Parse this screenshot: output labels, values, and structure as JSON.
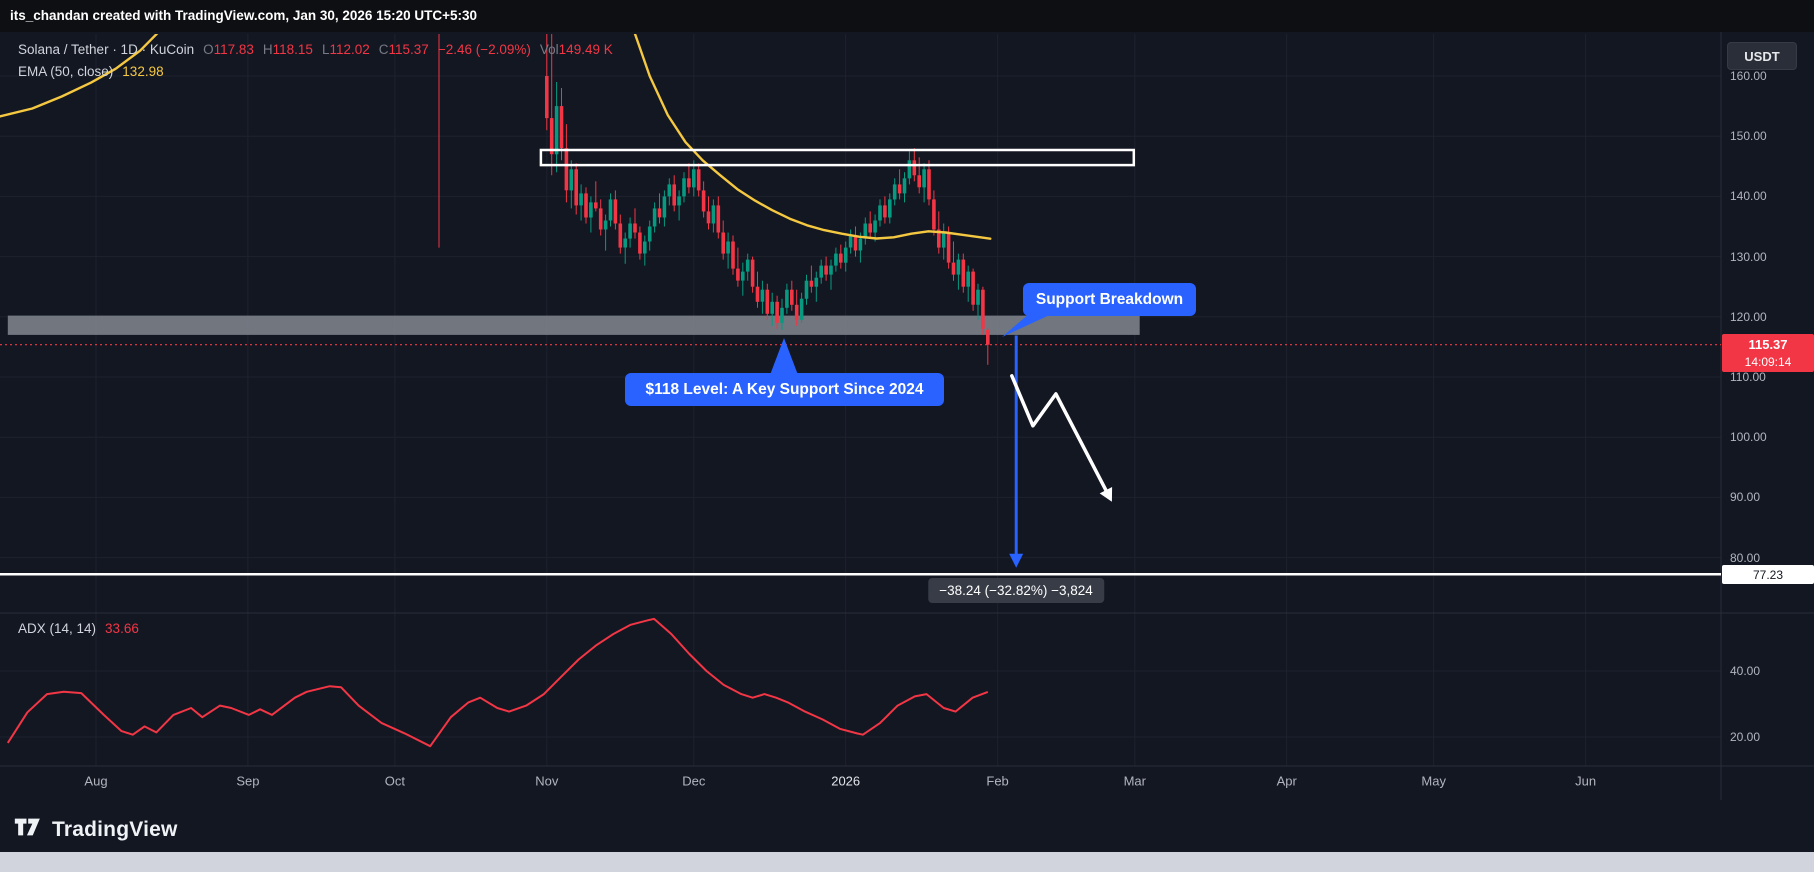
{
  "attribution": "its_chandan created with TradingView.com, Jan 30, 2026 15:20 UTC+5:30",
  "toolbar": {
    "currency": "USDT"
  },
  "legend": {
    "symbol": "Solana / Tether · 1D · KuCoin",
    "o_label": "O",
    "o": "117.83",
    "h_label": "H",
    "h": "118.15",
    "l_label": "L",
    "l": "112.02",
    "c_label": "C",
    "c": "115.37",
    "change": "−2.46 (−2.09%)",
    "vol_label": "Vol",
    "vol": "149.49 K",
    "ema_name": "EMA (50, close)",
    "ema_value": "132.98"
  },
  "indicator": {
    "name": "ADX (14, 14)",
    "value": "33.66"
  },
  "price_label": {
    "price": "115.37",
    "countdown": "14:09:14"
  },
  "level_label": "77.23",
  "annotations": {
    "support_breakdown": "Support Breakdown",
    "key_support": "$118 Level: A Key Support Since 2024",
    "measure": "−38.24 (−32.82%) −3,824"
  },
  "footer": {
    "brand": "TradingView"
  },
  "colors": {
    "up": "#089981",
    "down": "#f23645",
    "ema": "#f5c842",
    "adx": "#f23645",
    "accent_blue": "#2962ff",
    "zone_gray": "#83878f",
    "grid": "#1e222d",
    "border": "#2a2e39",
    "axis_text": "#b2b5be",
    "dim_text": "#787b86",
    "box_white": "#ffffff"
  },
  "chart_data": {
    "type": "candlestick",
    "symbol": "Solana / Tether",
    "interval": "1D",
    "exchange": "KuCoin",
    "last_ohlc": {
      "open": 117.83,
      "high": 118.15,
      "low": 112.02,
      "close": 115.37,
      "change": -2.46,
      "change_pct": -2.09,
      "volume": "149.49 K"
    },
    "price_axis": {
      "ticks": [
        {
          "label": "160.00",
          "value": 160
        },
        {
          "label": "150.00",
          "value": 150
        },
        {
          "label": "140.00",
          "value": 140
        },
        {
          "label": "130.00",
          "value": 130
        },
        {
          "label": "120.00",
          "value": 120
        },
        {
          "label": "110.00",
          "value": 110
        },
        {
          "label": "100.00",
          "value": 100
        },
        {
          "label": "90.00",
          "value": 90
        },
        {
          "label": "80.00",
          "value": 80
        }
      ],
      "current_price": 115.37,
      "support_ray": 77.23
    },
    "time_axis": [
      {
        "label": "Aug",
        "day": -70
      },
      {
        "label": "Sep",
        "day": -39
      },
      {
        "label": "Oct",
        "day": -9
      },
      {
        "label": "Nov",
        "day": 22
      },
      {
        "label": "Dec",
        "day": 52
      },
      {
        "label": "2026",
        "day": 83,
        "year": true
      },
      {
        "label": "Feb",
        "day": 114
      },
      {
        "label": "Mar",
        "day": 142
      },
      {
        "label": "Apr",
        "day": 173
      },
      {
        "label": "May",
        "day": 203
      },
      {
        "label": "Jun",
        "day": 234
      }
    ],
    "candles": [
      [
        0,
        175,
        178,
        131.5,
        171
      ],
      [
        22,
        160,
        169,
        151,
        153
      ],
      [
        23,
        153,
        167,
        143.5,
        147
      ],
      [
        24,
        147,
        159,
        144,
        155
      ],
      [
        25,
        155,
        158,
        146,
        148
      ],
      [
        26,
        148,
        152,
        139,
        141
      ],
      [
        27,
        141,
        146,
        138,
        144.5
      ],
      [
        28,
        144.5,
        145.5,
        137,
        138.5
      ],
      [
        29,
        138.5,
        142,
        136,
        140.5
      ],
      [
        30,
        140.5,
        141.5,
        135.5,
        136.5
      ],
      [
        31,
        136.5,
        140,
        134,
        139
      ],
      [
        32,
        139,
        142.5,
        137.5,
        138
      ],
      [
        33,
        138,
        139.5,
        133.5,
        134.5
      ],
      [
        34,
        134.5,
        137,
        131,
        136
      ],
      [
        35,
        136,
        140.5,
        135,
        139.5
      ],
      [
        36,
        139.5,
        141,
        134.5,
        135.5
      ],
      [
        37,
        135.5,
        137,
        130.5,
        131.5
      ],
      [
        38,
        131.5,
        134,
        128.8,
        133
      ],
      [
        39,
        133,
        136.5,
        131.5,
        135.5
      ],
      [
        40,
        135.5,
        138,
        133,
        134
      ],
      [
        41,
        134,
        135,
        129.5,
        130.5
      ],
      [
        42,
        130.5,
        133.5,
        128.5,
        132.5
      ],
      [
        43,
        132.5,
        136,
        131,
        135
      ],
      [
        44,
        135,
        139,
        134,
        138
      ],
      [
        45,
        138,
        140.5,
        135.5,
        136.5
      ],
      [
        46,
        136.5,
        141,
        135,
        140
      ],
      [
        47,
        140,
        143,
        138.5,
        142
      ],
      [
        48,
        142,
        143.5,
        137.5,
        138.5
      ],
      [
        49,
        138.5,
        141,
        136,
        140
      ],
      [
        50,
        140,
        144,
        139,
        143
      ],
      [
        51,
        143,
        145.5,
        140.5,
        141.5
      ],
      [
        52,
        141.5,
        146,
        140,
        144.5
      ],
      [
        53,
        144.5,
        145.5,
        140,
        141
      ],
      [
        54,
        141,
        142.5,
        136.5,
        137.5
      ],
      [
        55,
        137.5,
        140,
        134.5,
        135.5
      ],
      [
        56,
        135.5,
        139.5,
        134,
        138.5
      ],
      [
        57,
        138.5,
        140,
        133,
        134
      ],
      [
        58,
        134,
        136,
        129.5,
        130.5
      ],
      [
        59,
        130.5,
        134,
        128,
        132.5
      ],
      [
        60,
        132.5,
        133.5,
        127,
        128
      ],
      [
        61,
        128,
        131.5,
        125,
        126
      ],
      [
        62,
        126,
        129,
        123.5,
        127.5
      ],
      [
        63,
        127.5,
        130.5,
        126,
        129.5
      ],
      [
        64,
        129.5,
        130,
        124,
        125
      ],
      [
        65,
        125,
        127.5,
        121.5,
        122.5
      ],
      [
        66,
        122.5,
        126,
        120.5,
        124.5
      ],
      [
        67,
        124.5,
        125.5,
        119.5,
        120.5
      ],
      [
        68,
        120.5,
        124,
        118.5,
        122.5
      ],
      [
        69,
        122.5,
        123.5,
        118,
        119
      ],
      [
        70,
        119,
        123,
        117.8,
        121.5
      ],
      [
        71,
        121.5,
        125.5,
        120.5,
        124.5
      ],
      [
        72,
        124.5,
        126,
        121,
        122
      ],
      [
        73,
        122,
        124.5,
        118.5,
        119.5
      ],
      [
        74,
        119.5,
        124,
        119,
        123
      ],
      [
        75,
        123,
        127,
        122,
        126
      ],
      [
        76,
        126,
        128.5,
        124,
        125
      ],
      [
        77,
        125,
        127.5,
        122.5,
        126.5
      ],
      [
        78,
        126.5,
        129.5,
        125.5,
        128.5
      ],
      [
        79,
        128.5,
        130,
        126,
        127
      ],
      [
        80,
        127,
        129.5,
        124.5,
        128.5
      ],
      [
        81,
        128.5,
        131.5,
        127.5,
        130.5
      ],
      [
        82,
        130.5,
        132,
        128,
        129
      ],
      [
        83,
        129,
        132.5,
        127.5,
        131.5
      ],
      [
        84,
        131.5,
        134.5,
        130.5,
        133.5
      ],
      [
        85,
        133.5,
        135,
        130,
        131
      ],
      [
        86,
        131,
        134,
        129,
        133
      ],
      [
        87,
        133,
        136.5,
        132,
        135.5
      ],
      [
        88,
        135.5,
        137.5,
        133,
        134
      ],
      [
        89,
        134,
        137,
        132.5,
        136
      ],
      [
        90,
        136,
        139.5,
        135,
        138.5
      ],
      [
        91,
        138.5,
        140,
        135.5,
        136.5
      ],
      [
        92,
        136.5,
        140.5,
        135.5,
        139.5
      ],
      [
        93,
        139.5,
        143,
        138.5,
        142
      ],
      [
        94,
        142,
        144.5,
        139.5,
        140.5
      ],
      [
        95,
        140.5,
        144,
        139,
        143
      ],
      [
        96,
        143,
        147.5,
        142,
        146
      ],
      [
        97,
        146,
        148,
        142.5,
        143.5
      ],
      [
        98,
        143.5,
        146.5,
        140.5,
        141.5
      ],
      [
        99,
        141.5,
        145.5,
        139,
        144.5
      ],
      [
        100,
        144.5,
        146,
        138.5,
        139.5
      ],
      [
        101,
        139.5,
        141,
        133.5,
        134.5
      ],
      [
        102,
        134.5,
        137.5,
        130.5,
        131.5
      ],
      [
        103,
        131.5,
        135.5,
        129.5,
        134
      ],
      [
        104,
        134,
        135,
        128,
        129
      ],
      [
        105,
        129,
        132.5,
        126,
        127
      ],
      [
        106,
        127,
        130.5,
        124.5,
        129.5
      ],
      [
        107,
        129.5,
        130.5,
        124,
        125
      ],
      [
        108,
        125,
        128.5,
        122.5,
        127.5
      ],
      [
        109,
        127.5,
        128,
        121,
        122
      ],
      [
        110,
        122,
        125.5,
        119.5,
        124.5
      ],
      [
        111,
        124.5,
        125,
        117,
        118
      ],
      [
        112,
        117.83,
        118.15,
        112.02,
        115.37
      ]
    ],
    "ema50": {
      "period": 50,
      "source": "close",
      "last": 132.98,
      "segments": [
        [
          [
            -90,
            153.2
          ],
          [
            -83,
            154.6
          ],
          [
            -77,
            156.6
          ],
          [
            -71,
            158.9
          ],
          [
            -66,
            161.2
          ],
          [
            -61,
            164.2
          ],
          [
            -57,
            167.5
          ]
        ],
        [
          [
            40,
            167
          ],
          [
            43,
            160
          ],
          [
            46.7,
            153.5
          ],
          [
            50.3,
            149
          ],
          [
            53.8,
            146
          ],
          [
            57.4,
            143.5
          ],
          [
            60.9,
            141.2
          ],
          [
            64.5,
            139.3
          ],
          [
            68,
            137.7
          ],
          [
            71.6,
            136.3
          ],
          [
            75.1,
            135.2
          ],
          [
            78.6,
            134.4
          ],
          [
            82.2,
            133.8
          ],
          [
            85.7,
            133.3
          ],
          [
            89.3,
            133
          ],
          [
            92.8,
            133.2
          ],
          [
            96.4,
            133.8
          ],
          [
            99.9,
            134.2
          ],
          [
            103.4,
            134
          ],
          [
            107,
            133.6
          ],
          [
            110.5,
            133.2
          ],
          [
            112.5,
            132.98
          ]
        ]
      ]
    },
    "adx": {
      "length": 14,
      "smoothing": 14,
      "last": 33.66,
      "ticks": [
        {
          "label": "40.00",
          "value": 40
        },
        {
          "label": "20.00",
          "value": 20
        }
      ],
      "points": [
        [
          -88,
          18.2
        ],
        [
          -84,
          27.5
        ],
        [
          -80,
          33
        ],
        [
          -76.6,
          33.7
        ],
        [
          -73,
          33.3
        ],
        [
          -68.4,
          26.7
        ],
        [
          -64.8,
          21.8
        ],
        [
          -62.5,
          20.7
        ],
        [
          -60.1,
          23.2
        ],
        [
          -57.7,
          21.4
        ],
        [
          -54.2,
          26.7
        ],
        [
          -50.6,
          28.8
        ],
        [
          -48.3,
          26
        ],
        [
          -44.7,
          29.5
        ],
        [
          -42.4,
          28.8
        ],
        [
          -38.8,
          26.7
        ],
        [
          -36.5,
          28.4
        ],
        [
          -34.1,
          26.7
        ],
        [
          -29.4,
          31.9
        ],
        [
          -27,
          33.7
        ],
        [
          -22.3,
          35.4
        ],
        [
          -20,
          35.1
        ],
        [
          -16.4,
          29.5
        ],
        [
          -11.7,
          24.2
        ],
        [
          -7,
          21.1
        ],
        [
          -1.8,
          17.2
        ],
        [
          2.4,
          26
        ],
        [
          6,
          30.5
        ],
        [
          8.4,
          31.9
        ],
        [
          11.9,
          28.8
        ],
        [
          14.3,
          27.7
        ],
        [
          17.8,
          29.5
        ],
        [
          21.4,
          33
        ],
        [
          24.9,
          38.2
        ],
        [
          28.5,
          43.5
        ],
        [
          32,
          47.7
        ],
        [
          35.6,
          51.2
        ],
        [
          39.1,
          54
        ],
        [
          42.7,
          55.4
        ],
        [
          43.9,
          55.8
        ],
        [
          47.4,
          51.2
        ],
        [
          51,
          45.3
        ],
        [
          54.6,
          40
        ],
        [
          58.1,
          35.8
        ],
        [
          61.7,
          33
        ],
        [
          64,
          31.9
        ],
        [
          66.4,
          33
        ],
        [
          68.8,
          31.9
        ],
        [
          71.2,
          30.5
        ],
        [
          74.7,
          27.7
        ],
        [
          78.3,
          25.3
        ],
        [
          81.8,
          22.5
        ],
        [
          85.3,
          21.1
        ],
        [
          86.5,
          20.7
        ],
        [
          90,
          24.2
        ],
        [
          93.6,
          29.5
        ],
        [
          97.1,
          32.3
        ],
        [
          99.5,
          33
        ],
        [
          103,
          28.8
        ],
        [
          105.4,
          27.7
        ],
        [
          108.9,
          31.9
        ],
        [
          112,
          33.66
        ]
      ]
    },
    "zones": {
      "resistance_box": {
        "day_start": 20.8,
        "day_end": 141.8,
        "price_top": 147.7,
        "price_bottom": 145.2
      },
      "support_zone": {
        "day_start": -88,
        "day_end": 143,
        "price_top": 120.2,
        "price_bottom": 117.0
      }
    },
    "measure": {
      "day": 117.8,
      "from_price": 116.9,
      "to_price": 78.3,
      "label": "−38.24 (−32.82%) −3,824"
    },
    "impulse_arrow": [
      [
        116.9,
        110.2
      ],
      [
        121.2,
        101.9
      ],
      [
        125.9,
        107.2
      ],
      [
        136.1,
        91.2
      ]
    ]
  }
}
